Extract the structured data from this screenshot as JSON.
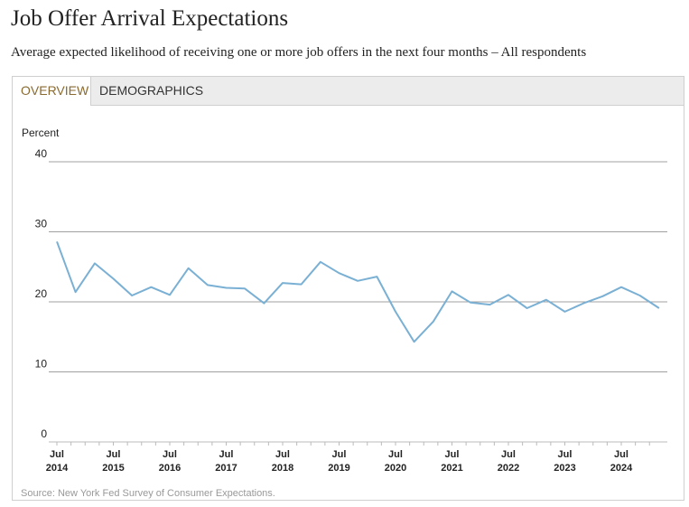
{
  "header": {
    "title": "Job Offer Arrival Expectations",
    "subtitle": "Average expected likelihood of receiving one or more job offers in the next four months – All respondents"
  },
  "tabs": [
    {
      "label": "OVERVIEW",
      "active": true
    },
    {
      "label": "DEMOGRAPHICS",
      "active": false
    }
  ],
  "source": "Source: New York Fed Survey of Consumer Expectations.",
  "colors": {
    "line": "#7ab0d4",
    "grid": "#a0a0a0",
    "active_tab": "#8a6a2f"
  },
  "chart_data": {
    "type": "line",
    "title": "",
    "ylabel": "Percent",
    "ylim": [
      0,
      40
    ],
    "yticks": [
      0,
      10,
      20,
      30,
      40
    ],
    "xticks": [
      {
        "month": "Jul",
        "year": "2014",
        "x": 2014.5
      },
      {
        "month": "Jul",
        "year": "2015",
        "x": 2015.5
      },
      {
        "month": "Jul",
        "year": "2016",
        "x": 2016.5
      },
      {
        "month": "Jul",
        "year": "2017",
        "x": 2017.5
      },
      {
        "month": "Jul",
        "year": "2018",
        "x": 2018.5
      },
      {
        "month": "Jul",
        "year": "2019",
        "x": 2019.5
      },
      {
        "month": "Jul",
        "year": "2020",
        "x": 2020.5
      },
      {
        "month": "Jul",
        "year": "2021",
        "x": 2021.5
      },
      {
        "month": "Jul",
        "year": "2022",
        "x": 2022.5
      },
      {
        "month": "Jul",
        "year": "2023",
        "x": 2023.5
      },
      {
        "month": "Jul",
        "year": "2024",
        "x": 2024.5
      }
    ],
    "xlim": [
      2014.5,
      2025.1
    ],
    "grid": true,
    "series": [
      {
        "x": [
          2014.5,
          2014.83,
          2015.17,
          2015.5,
          2015.83,
          2016.17,
          2016.5,
          2016.83,
          2017.17,
          2017.5,
          2017.83,
          2018.17,
          2018.5,
          2018.83,
          2019.17,
          2019.5,
          2019.83,
          2020.17,
          2020.5,
          2020.83,
          2021.17,
          2021.5,
          2021.83,
          2022.17,
          2022.5,
          2022.83,
          2023.17,
          2023.5,
          2023.83,
          2024.17,
          2024.5,
          2024.83,
          2025.17
        ],
        "values": [
          28.6,
          21.4,
          25.5,
          23.3,
          20.9,
          22.1,
          21.0,
          24.8,
          22.4,
          22.0,
          21.9,
          19.8,
          22.7,
          22.5,
          25.7,
          24.1,
          23.0,
          23.6,
          18.6,
          14.3,
          17.2,
          21.5,
          19.9,
          19.6,
          21.0,
          19.1,
          20.3,
          18.6,
          19.8,
          20.8,
          22.1,
          20.9,
          19.1
        ]
      }
    ]
  }
}
